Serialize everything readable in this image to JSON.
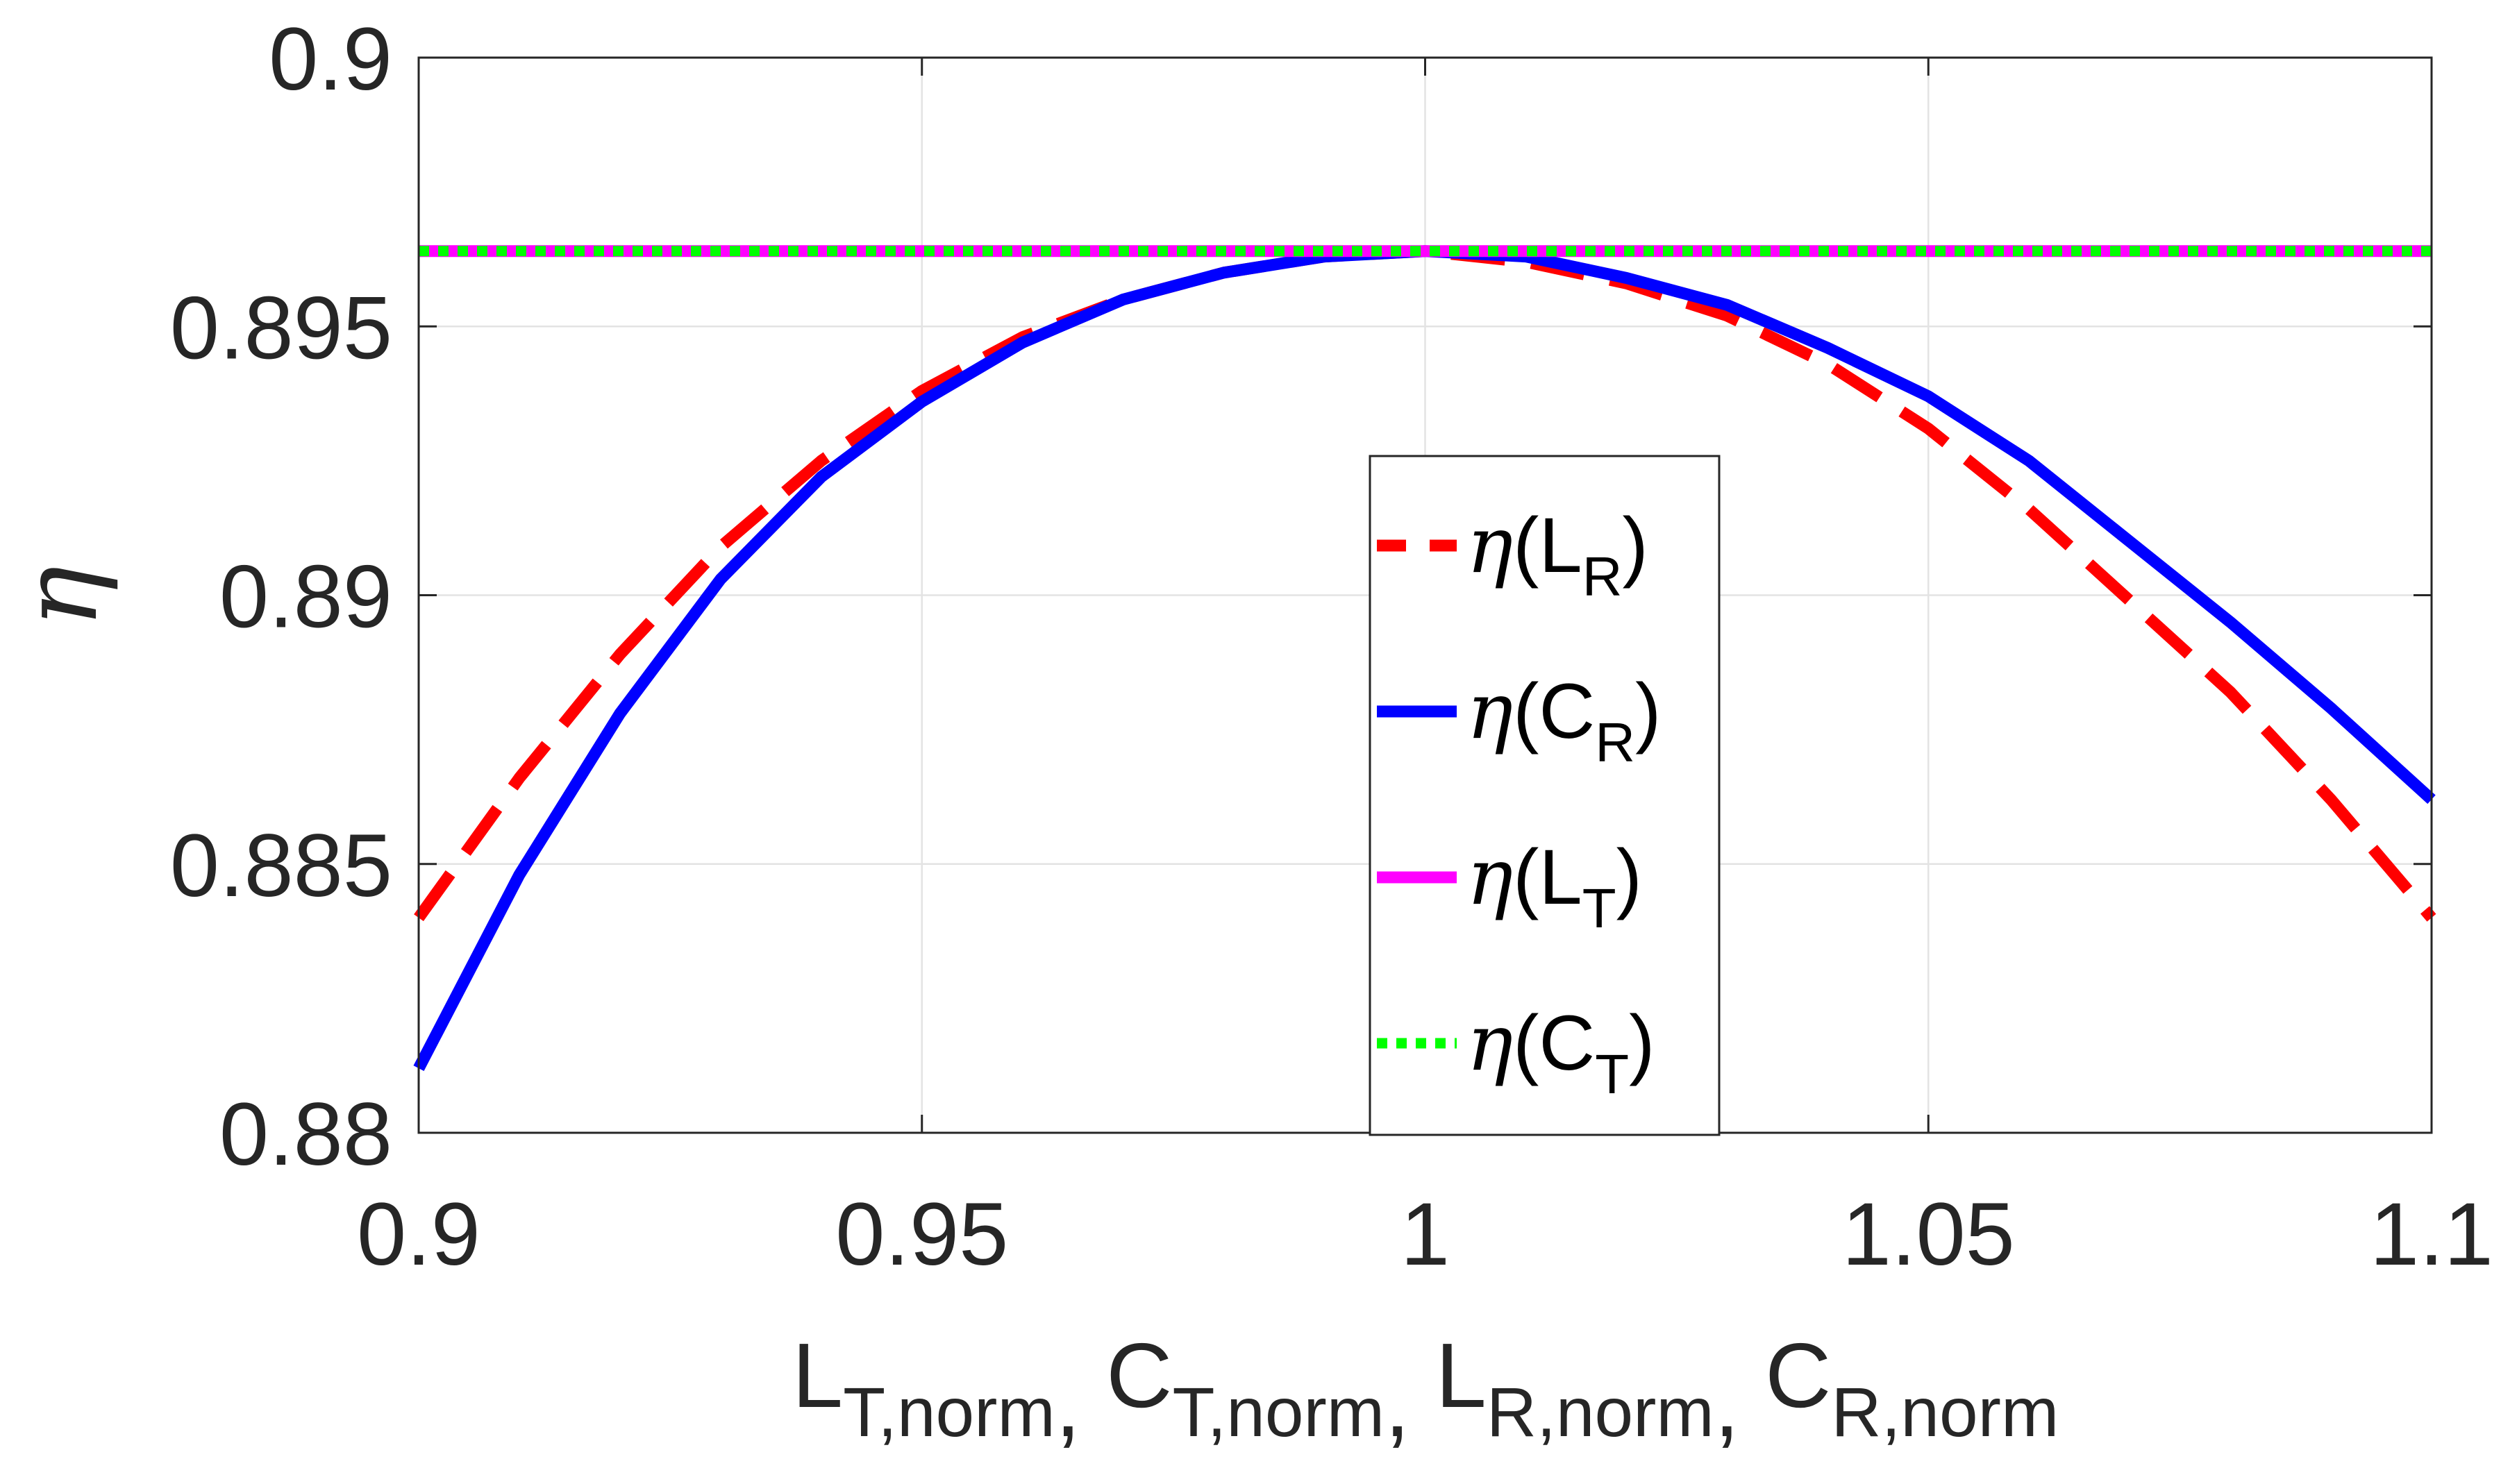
{
  "chart_data": {
    "type": "line",
    "xlabel": {
      "parts": [
        {
          "main": "L",
          "sub": "T,norm"
        },
        {
          "main": "C",
          "sub": "T,norm"
        },
        {
          "main": "L",
          "sub": "R,norm"
        },
        {
          "main": "C",
          "sub": "R,norm"
        }
      ],
      "separator": ", "
    },
    "ylabel": "η",
    "xlim": [
      0.9,
      1.1
    ],
    "ylim": [
      0.88,
      0.9
    ],
    "xticks": [
      0.9,
      0.95,
      1.0,
      1.05,
      1.1
    ],
    "xtick_labels": [
      "0.9",
      "0.95",
      "1",
      "1.05",
      "1.1"
    ],
    "yticks": [
      0.88,
      0.885,
      0.89,
      0.895,
      0.9
    ],
    "ytick_labels": [
      "0.88",
      "0.885",
      "0.89",
      "0.895",
      "0.9"
    ],
    "grid": true,
    "legend_position": "center-bottom",
    "x": [
      0.9,
      0.91,
      0.92,
      0.93,
      0.94,
      0.95,
      0.96,
      0.97,
      0.98,
      0.99,
      1.0,
      1.01,
      1.02,
      1.03,
      1.04,
      1.05,
      1.06,
      1.07,
      1.08,
      1.09,
      1.1
    ],
    "series": [
      {
        "name": "η(L_R)",
        "label": {
          "prefix": "η(",
          "main": "L",
          "sub": "R",
          "suffix": ")"
        },
        "color": "#FF0000",
        "style": "dashed",
        "values": [
          0.884,
          0.8866,
          0.8889,
          0.8909,
          0.8925,
          0.8938,
          0.8948,
          0.8955,
          0.896,
          0.8963,
          0.8964,
          0.8962,
          0.8958,
          0.8952,
          0.8943,
          0.8931,
          0.8916,
          0.8899,
          0.8882,
          0.8862,
          0.884
        ]
      },
      {
        "name": "η(C_R)",
        "label": {
          "prefix": "η(",
          "main": "C",
          "sub": "R",
          "suffix": ")"
        },
        "color": "#0000FF",
        "style": "solid",
        "values": [
          0.8812,
          0.8848,
          0.8878,
          0.8903,
          0.8922,
          0.8936,
          0.8947,
          0.8955,
          0.896,
          0.8963,
          0.8964,
          0.8963,
          0.8959,
          0.8954,
          0.8946,
          0.8937,
          0.8925,
          0.891,
          0.8895,
          0.8879,
          0.8862
        ]
      },
      {
        "name": "η(L_T)",
        "label": {
          "prefix": "η(",
          "main": "L",
          "sub": "T",
          "suffix": ")"
        },
        "color": "#FF00FF",
        "style": "solid",
        "values": [
          0.8964,
          0.8964,
          0.8964,
          0.8964,
          0.8964,
          0.8964,
          0.8964,
          0.8964,
          0.8964,
          0.8964,
          0.8964,
          0.8964,
          0.8964,
          0.8964,
          0.8964,
          0.8964,
          0.8964,
          0.8964,
          0.8964,
          0.8964,
          0.8964
        ]
      },
      {
        "name": "η(C_T)",
        "label": {
          "prefix": "η(",
          "main": "C",
          "sub": "T",
          "suffix": ")"
        },
        "color": "#00FF00",
        "style": "dotted",
        "values": [
          0.8964,
          0.8964,
          0.8964,
          0.8964,
          0.8964,
          0.8964,
          0.8964,
          0.8964,
          0.8964,
          0.8964,
          0.8964,
          0.8964,
          0.8964,
          0.8964,
          0.8964,
          0.8964,
          0.8964,
          0.8964,
          0.8964,
          0.8964,
          0.8964
        ]
      }
    ]
  }
}
